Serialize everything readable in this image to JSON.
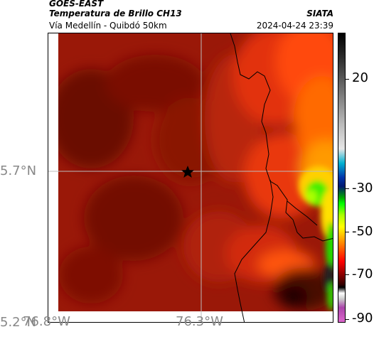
{
  "header": {
    "satellite": "GOES-EAST",
    "product": "Temperatura de Brillo CH13",
    "region": "Vía Medellín - Quibdó 50km",
    "organization": "SIATA",
    "timestamp": "2024-04-24 23:39"
  },
  "map": {
    "lat_labels": [
      "5.7°N",
      "5.2°N"
    ],
    "lon_labels": [
      "76.8°W",
      "76.3°W"
    ],
    "marker_icon": "star-icon"
  },
  "colorbar": {
    "tick_labels": [
      "20",
      "-30",
      "-50",
      "-70",
      "-90"
    ]
  },
  "colors": {
    "field_dark": "#6a0a04",
    "field_mid": "#a51a0a",
    "field_warm_red": "#d02a0c",
    "field_orange": "#ff7a00",
    "field_yellow": "#ffe000",
    "field_green": "#33ee00",
    "coastline": "#000000",
    "gridline": "#bdbdbd"
  }
}
